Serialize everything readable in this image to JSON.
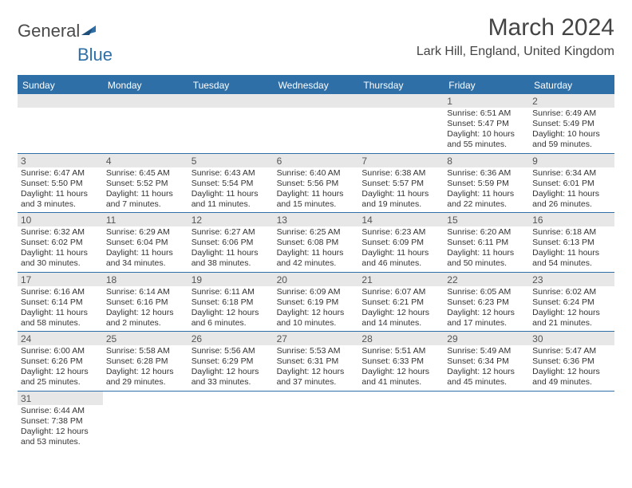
{
  "logo": {
    "text1": "General",
    "text2": "Blue"
  },
  "title": "March 2024",
  "location": "Lark Hill, England, United Kingdom",
  "colors": {
    "accent": "#2f6fa8",
    "band": "#e7e7e7",
    "text": "#333333"
  },
  "typography": {
    "title_fontsize": 30,
    "location_fontsize": 16,
    "dow_fontsize": 12,
    "cell_fontsize": 10.5
  },
  "dow": [
    "Sunday",
    "Monday",
    "Tuesday",
    "Wednesday",
    "Thursday",
    "Friday",
    "Saturday"
  ],
  "weeks": [
    [
      null,
      null,
      null,
      null,
      null,
      {
        "n": "1",
        "sr": "6:51 AM",
        "ss": "5:47 PM",
        "dl": "10 hours and 55 minutes."
      },
      {
        "n": "2",
        "sr": "6:49 AM",
        "ss": "5:49 PM",
        "dl": "10 hours and 59 minutes."
      }
    ],
    [
      {
        "n": "3",
        "sr": "6:47 AM",
        "ss": "5:50 PM",
        "dl": "11 hours and 3 minutes."
      },
      {
        "n": "4",
        "sr": "6:45 AM",
        "ss": "5:52 PM",
        "dl": "11 hours and 7 minutes."
      },
      {
        "n": "5",
        "sr": "6:43 AM",
        "ss": "5:54 PM",
        "dl": "11 hours and 11 minutes."
      },
      {
        "n": "6",
        "sr": "6:40 AM",
        "ss": "5:56 PM",
        "dl": "11 hours and 15 minutes."
      },
      {
        "n": "7",
        "sr": "6:38 AM",
        "ss": "5:57 PM",
        "dl": "11 hours and 19 minutes."
      },
      {
        "n": "8",
        "sr": "6:36 AM",
        "ss": "5:59 PM",
        "dl": "11 hours and 22 minutes."
      },
      {
        "n": "9",
        "sr": "6:34 AM",
        "ss": "6:01 PM",
        "dl": "11 hours and 26 minutes."
      }
    ],
    [
      {
        "n": "10",
        "sr": "6:32 AM",
        "ss": "6:02 PM",
        "dl": "11 hours and 30 minutes."
      },
      {
        "n": "11",
        "sr": "6:29 AM",
        "ss": "6:04 PM",
        "dl": "11 hours and 34 minutes."
      },
      {
        "n": "12",
        "sr": "6:27 AM",
        "ss": "6:06 PM",
        "dl": "11 hours and 38 minutes."
      },
      {
        "n": "13",
        "sr": "6:25 AM",
        "ss": "6:08 PM",
        "dl": "11 hours and 42 minutes."
      },
      {
        "n": "14",
        "sr": "6:23 AM",
        "ss": "6:09 PM",
        "dl": "11 hours and 46 minutes."
      },
      {
        "n": "15",
        "sr": "6:20 AM",
        "ss": "6:11 PM",
        "dl": "11 hours and 50 minutes."
      },
      {
        "n": "16",
        "sr": "6:18 AM",
        "ss": "6:13 PM",
        "dl": "11 hours and 54 minutes."
      }
    ],
    [
      {
        "n": "17",
        "sr": "6:16 AM",
        "ss": "6:14 PM",
        "dl": "11 hours and 58 minutes."
      },
      {
        "n": "18",
        "sr": "6:14 AM",
        "ss": "6:16 PM",
        "dl": "12 hours and 2 minutes."
      },
      {
        "n": "19",
        "sr": "6:11 AM",
        "ss": "6:18 PM",
        "dl": "12 hours and 6 minutes."
      },
      {
        "n": "20",
        "sr": "6:09 AM",
        "ss": "6:19 PM",
        "dl": "12 hours and 10 minutes."
      },
      {
        "n": "21",
        "sr": "6:07 AM",
        "ss": "6:21 PM",
        "dl": "12 hours and 14 minutes."
      },
      {
        "n": "22",
        "sr": "6:05 AM",
        "ss": "6:23 PM",
        "dl": "12 hours and 17 minutes."
      },
      {
        "n": "23",
        "sr": "6:02 AM",
        "ss": "6:24 PM",
        "dl": "12 hours and 21 minutes."
      }
    ],
    [
      {
        "n": "24",
        "sr": "6:00 AM",
        "ss": "6:26 PM",
        "dl": "12 hours and 25 minutes."
      },
      {
        "n": "25",
        "sr": "5:58 AM",
        "ss": "6:28 PM",
        "dl": "12 hours and 29 minutes."
      },
      {
        "n": "26",
        "sr": "5:56 AM",
        "ss": "6:29 PM",
        "dl": "12 hours and 33 minutes."
      },
      {
        "n": "27",
        "sr": "5:53 AM",
        "ss": "6:31 PM",
        "dl": "12 hours and 37 minutes."
      },
      {
        "n": "28",
        "sr": "5:51 AM",
        "ss": "6:33 PM",
        "dl": "12 hours and 41 minutes."
      },
      {
        "n": "29",
        "sr": "5:49 AM",
        "ss": "6:34 PM",
        "dl": "12 hours and 45 minutes."
      },
      {
        "n": "30",
        "sr": "5:47 AM",
        "ss": "6:36 PM",
        "dl": "12 hours and 49 minutes."
      }
    ],
    [
      {
        "n": "31",
        "sr": "6:44 AM",
        "ss": "7:38 PM",
        "dl": "12 hours and 53 minutes."
      },
      null,
      null,
      null,
      null,
      null,
      null
    ]
  ],
  "labels": {
    "sunrise": "Sunrise:",
    "sunset": "Sunset:",
    "daylight": "Daylight:"
  }
}
